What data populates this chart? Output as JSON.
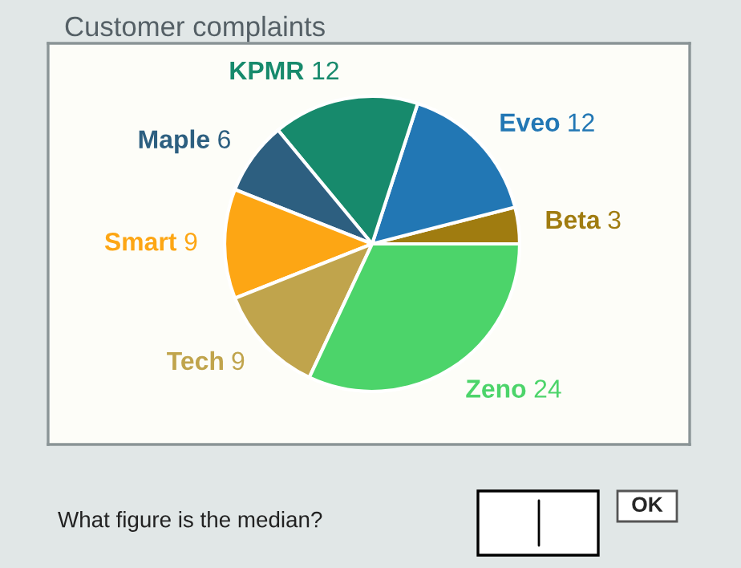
{
  "chart_data": {
    "type": "pie",
    "title": "Customer complaints",
    "categories": [
      "Beta",
      "Eveo",
      "KPMR",
      "Maple",
      "Smart",
      "Tech",
      "Zeno"
    ],
    "values": [
      3,
      12,
      12,
      6,
      9,
      9,
      24
    ],
    "colors": [
      "#a07c10",
      "#2277b4",
      "#178a6c",
      "#2d5f80",
      "#fda614",
      "#c0a44c",
      "#4cd46a"
    ],
    "data_labels": true,
    "legend": false,
    "annotations": [
      "What figure is the median?",
      "OK"
    ]
  }
}
